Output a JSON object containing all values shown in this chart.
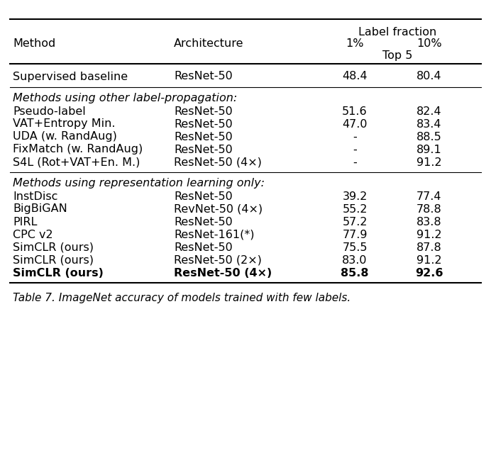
{
  "title": "Table 7. ImageNet accuracy of models trained with few labels.",
  "header_row1": [
    "Method",
    "Architecture",
    "Label fraction",
    ""
  ],
  "header_row2": [
    "",
    "",
    "1%",
    "10%"
  ],
  "header_row3": [
    "",
    "",
    "Top 5",
    ""
  ],
  "col_headers": [
    "Method",
    "Architecture",
    "1%",
    "10%"
  ],
  "col_subheader": "Top 5",
  "label_fraction": "Label fraction",
  "section1_header": "Methods using other label-propagation:",
  "section2_header": "Methods using representation learning only:",
  "rows_baseline": [
    [
      "Supervised baseline",
      "ResNet-50",
      "48.4",
      "80.4"
    ]
  ],
  "rows_section1": [
    [
      "Pseudo-label",
      "ResNet-50",
      "51.6",
      "82.4"
    ],
    [
      "VAT+Entropy Min.",
      "ResNet-50",
      "47.0",
      "83.4"
    ],
    [
      "UDA (w. RandAug)",
      "ResNet-50",
      "-",
      "88.5"
    ],
    [
      "FixMatch (w. RandAug)",
      "ResNet-50",
      "-",
      "89.1"
    ],
    [
      "S4L (Rot+VAT+En. M.)",
      "ResNet-50 (4×)",
      "-",
      "91.2"
    ]
  ],
  "rows_section2": [
    [
      "InstDisc",
      "ResNet-50",
      "39.2",
      "77.4"
    ],
    [
      "BigBiGAN",
      "RevNet-50 (4×)",
      "55.2",
      "78.8"
    ],
    [
      "PIRL",
      "ResNet-50",
      "57.2",
      "83.8"
    ],
    [
      "CPC v2",
      "ResNet-161(*)",
      "77.9",
      "91.2"
    ],
    [
      "SimCLR (ours)",
      "ResNet-50",
      "75.5",
      "87.8"
    ],
    [
      "SimCLR (ours)",
      "ResNet-50 (2×)",
      "83.0",
      "91.2"
    ],
    [
      "SimCLR (ours)",
      "ResNet-50 (4×)",
      "85.8",
      "92.6"
    ]
  ],
  "bold_last_row": true,
  "bg_color": "#ffffff",
  "text_color": "#000000",
  "font_size": 11.5
}
